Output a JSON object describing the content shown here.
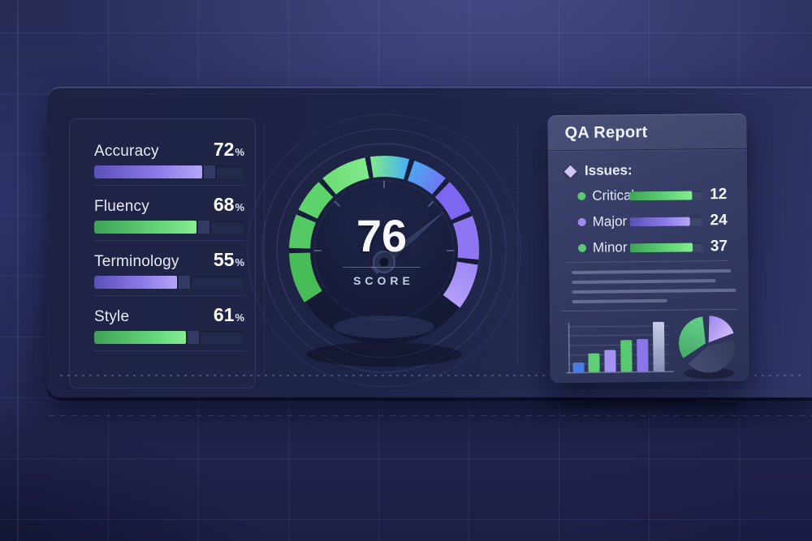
{
  "theme": {
    "background": "#2b2f62",
    "panel": "#1e2446",
    "card": "#363d66",
    "green": "#62d377",
    "purple": "#8d7ce8",
    "cyan": "#48b3f3",
    "text": "#eef2fc"
  },
  "metrics_panel": {
    "items": [
      {
        "label": "Accuracy",
        "value": 72,
        "unit": "%",
        "color": "purple"
      },
      {
        "label": "Fluency",
        "value": 68,
        "unit": "%",
        "color": "green"
      },
      {
        "label": "Terminology",
        "value": 55,
        "unit": "%",
        "color": "purple"
      },
      {
        "label": "Style",
        "value": 61,
        "unit": "%",
        "color": "green"
      }
    ]
  },
  "qa_report": {
    "title": "QA Report",
    "issues_heading": "Issues:",
    "placeholder_line_widths": [
      196,
      177,
      202,
      117
    ]
  },
  "chart_data": [
    {
      "id": "score_gauge",
      "type": "gauge",
      "label": "SCORE",
      "value": 76,
      "min": 0,
      "max": 100,
      "start_angle_deg": 213,
      "end_angle_deg": -37,
      "needle_angle_deg": 40,
      "tick_angles": [
        180,
        135,
        90,
        45,
        0
      ],
      "segments": [
        {
          "from": 213,
          "to": 180,
          "color": "#48bc59"
        },
        {
          "from": 180,
          "to": 156,
          "color": "#53c863"
        },
        {
          "from": 156,
          "to": 132,
          "color": "#5fd36b"
        },
        {
          "from": 132,
          "to": 100,
          "color": "#6cdd73",
          "color2": "#82e98d"
        },
        {
          "from": 100,
          "to": 73,
          "color": "#7ee88b",
          "color2": "#48b3f3"
        },
        {
          "from": 73,
          "to": 48,
          "color": "#4fa5f3",
          "color2": "#6d77f0"
        },
        {
          "from": 48,
          "to": 23,
          "color": "#7d66f0"
        },
        {
          "from": 23,
          "to": -7,
          "color": "#8e76f3"
        },
        {
          "from": -7,
          "to": -37,
          "color": "#9f88f6",
          "color2": "#b29ef8"
        }
      ]
    },
    {
      "id": "issue_bars",
      "type": "bar",
      "orientation": "horizontal",
      "categories": [
        "Critical",
        "Major",
        "Minor"
      ],
      "values": [
        12,
        24,
        37
      ],
      "bar_colors": [
        "green",
        "purple",
        "green"
      ],
      "fill_pct": [
        86,
        82,
        85
      ]
    },
    {
      "id": "mini_bar_chart",
      "type": "bar",
      "note": "unlabeled decorative bar chart, heights in px",
      "bars": [
        {
          "value": 12,
          "color": "#4a7ce2"
        },
        {
          "value": 23,
          "color": "#5ecf74"
        },
        {
          "value": 27,
          "color": "#a392f2"
        },
        {
          "value": 39,
          "color": "#58c96e"
        },
        {
          "value": 40,
          "color": "#8a76ea"
        },
        {
          "value": 61,
          "color": "#c7cde8",
          "color2": "#878fb8"
        }
      ]
    },
    {
      "id": "mini_pie_chart",
      "type": "pie",
      "note": "unlabeled decorative pie chart",
      "slices": [
        {
          "name": "green",
          "from_deg": 96,
          "to_deg": 213,
          "pct": 33,
          "color": "#63d18b",
          "color2": "#46a968"
        },
        {
          "name": "lavender",
          "from_deg": 20,
          "to_deg": 88,
          "pct": 19,
          "color": "#d2bdfa",
          "color2": "#9c87ef"
        },
        {
          "name": "slate",
          "from_deg": 221,
          "to_deg": 372,
          "pct": 42,
          "color": "#474e73",
          "color2": "#343a59"
        }
      ]
    }
  ]
}
